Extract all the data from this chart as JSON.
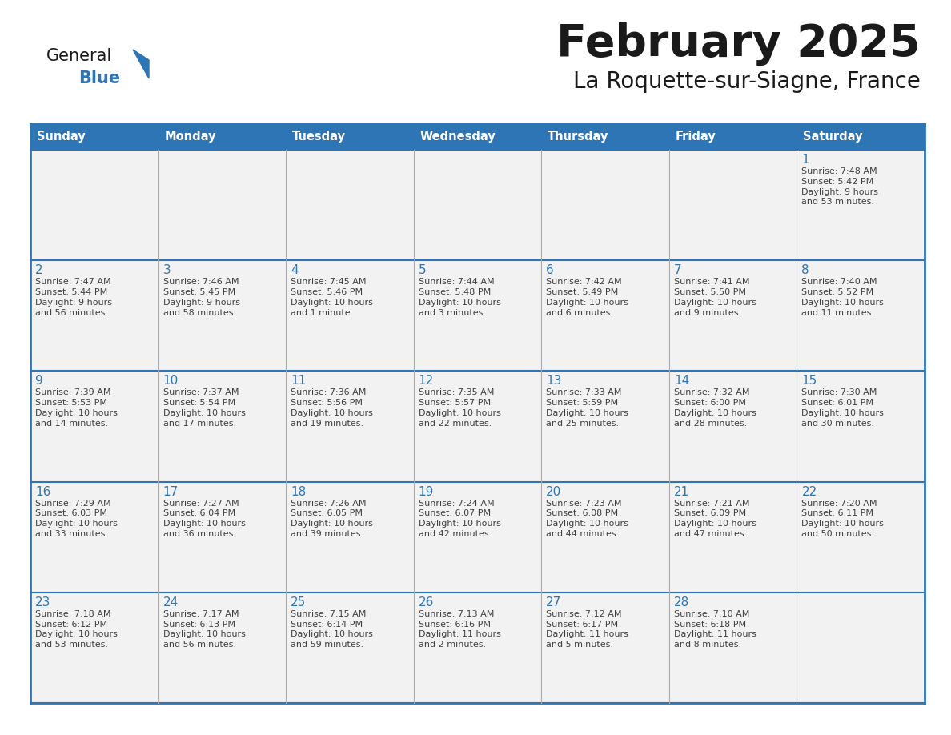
{
  "title": "February 2025",
  "subtitle": "La Roquette-sur-Siagne, France",
  "header_bg": "#2E75B6",
  "header_text_color": "#FFFFFF",
  "cell_bg": "#F2F2F2",
  "row_sep_color": "#2E75B6",
  "col_sep_color": "#AAAAAA",
  "outer_border_color": "#2E75B6",
  "text_color_day": "#2E75B6",
  "text_color_info": "#404040",
  "days_of_week": [
    "Sunday",
    "Monday",
    "Tuesday",
    "Wednesday",
    "Thursday",
    "Friday",
    "Saturday"
  ],
  "logo_general_color": "#1a1a1a",
  "logo_blue_color": "#2E75B6",
  "title_color": "#1a1a1a",
  "subtitle_color": "#1a1a1a",
  "calendar_data": [
    [
      null,
      null,
      null,
      null,
      null,
      null,
      {
        "day": "1",
        "sunrise": "7:48 AM",
        "sunset": "5:42 PM",
        "daylight": "9 hours\nand 53 minutes."
      }
    ],
    [
      {
        "day": "2",
        "sunrise": "7:47 AM",
        "sunset": "5:44 PM",
        "daylight": "9 hours\nand 56 minutes."
      },
      {
        "day": "3",
        "sunrise": "7:46 AM",
        "sunset": "5:45 PM",
        "daylight": "9 hours\nand 58 minutes."
      },
      {
        "day": "4",
        "sunrise": "7:45 AM",
        "sunset": "5:46 PM",
        "daylight": "10 hours\nand 1 minute."
      },
      {
        "day": "5",
        "sunrise": "7:44 AM",
        "sunset": "5:48 PM",
        "daylight": "10 hours\nand 3 minutes."
      },
      {
        "day": "6",
        "sunrise": "7:42 AM",
        "sunset": "5:49 PM",
        "daylight": "10 hours\nand 6 minutes."
      },
      {
        "day": "7",
        "sunrise": "7:41 AM",
        "sunset": "5:50 PM",
        "daylight": "10 hours\nand 9 minutes."
      },
      {
        "day": "8",
        "sunrise": "7:40 AM",
        "sunset": "5:52 PM",
        "daylight": "10 hours\nand 11 minutes."
      }
    ],
    [
      {
        "day": "9",
        "sunrise": "7:39 AM",
        "sunset": "5:53 PM",
        "daylight": "10 hours\nand 14 minutes."
      },
      {
        "day": "10",
        "sunrise": "7:37 AM",
        "sunset": "5:54 PM",
        "daylight": "10 hours\nand 17 minutes."
      },
      {
        "day": "11",
        "sunrise": "7:36 AM",
        "sunset": "5:56 PM",
        "daylight": "10 hours\nand 19 minutes."
      },
      {
        "day": "12",
        "sunrise": "7:35 AM",
        "sunset": "5:57 PM",
        "daylight": "10 hours\nand 22 minutes."
      },
      {
        "day": "13",
        "sunrise": "7:33 AM",
        "sunset": "5:59 PM",
        "daylight": "10 hours\nand 25 minutes."
      },
      {
        "day": "14",
        "sunrise": "7:32 AM",
        "sunset": "6:00 PM",
        "daylight": "10 hours\nand 28 minutes."
      },
      {
        "day": "15",
        "sunrise": "7:30 AM",
        "sunset": "6:01 PM",
        "daylight": "10 hours\nand 30 minutes."
      }
    ],
    [
      {
        "day": "16",
        "sunrise": "7:29 AM",
        "sunset": "6:03 PM",
        "daylight": "10 hours\nand 33 minutes."
      },
      {
        "day": "17",
        "sunrise": "7:27 AM",
        "sunset": "6:04 PM",
        "daylight": "10 hours\nand 36 minutes."
      },
      {
        "day": "18",
        "sunrise": "7:26 AM",
        "sunset": "6:05 PM",
        "daylight": "10 hours\nand 39 minutes."
      },
      {
        "day": "19",
        "sunrise": "7:24 AM",
        "sunset": "6:07 PM",
        "daylight": "10 hours\nand 42 minutes."
      },
      {
        "day": "20",
        "sunrise": "7:23 AM",
        "sunset": "6:08 PM",
        "daylight": "10 hours\nand 44 minutes."
      },
      {
        "day": "21",
        "sunrise": "7:21 AM",
        "sunset": "6:09 PM",
        "daylight": "10 hours\nand 47 minutes."
      },
      {
        "day": "22",
        "sunrise": "7:20 AM",
        "sunset": "6:11 PM",
        "daylight": "10 hours\nand 50 minutes."
      }
    ],
    [
      {
        "day": "23",
        "sunrise": "7:18 AM",
        "sunset": "6:12 PM",
        "daylight": "10 hours\nand 53 minutes."
      },
      {
        "day": "24",
        "sunrise": "7:17 AM",
        "sunset": "6:13 PM",
        "daylight": "10 hours\nand 56 minutes."
      },
      {
        "day": "25",
        "sunrise": "7:15 AM",
        "sunset": "6:14 PM",
        "daylight": "10 hours\nand 59 minutes."
      },
      {
        "day": "26",
        "sunrise": "7:13 AM",
        "sunset": "6:16 PM",
        "daylight": "11 hours\nand 2 minutes."
      },
      {
        "day": "27",
        "sunrise": "7:12 AM",
        "sunset": "6:17 PM",
        "daylight": "11 hours\nand 5 minutes."
      },
      {
        "day": "28",
        "sunrise": "7:10 AM",
        "sunset": "6:18 PM",
        "daylight": "11 hours\nand 8 minutes."
      },
      null
    ]
  ]
}
